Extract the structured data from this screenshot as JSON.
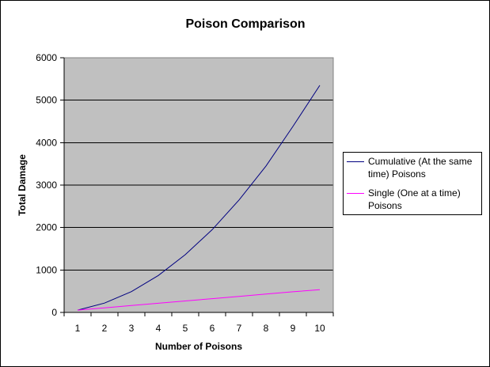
{
  "chart_data": {
    "type": "line",
    "title": "Poison Comparison",
    "xlabel": "Number of Poisons",
    "ylabel": "Total Damage",
    "x": [
      1,
      2,
      3,
      4,
      5,
      6,
      7,
      8,
      9,
      10
    ],
    "x_tick_labels": [
      "1",
      "2",
      "3",
      "4",
      "5",
      "6",
      "7",
      "8",
      "9",
      "10"
    ],
    "ylim": [
      0,
      6000
    ],
    "y_ticks": [
      0,
      1000,
      2000,
      3000,
      4000,
      5000,
      6000
    ],
    "y_tick_labels": [
      "0",
      "1000",
      "2000",
      "3000",
      "4000",
      "5000",
      "6000"
    ],
    "grid": true,
    "legend_position": "right",
    "plot_background": "#c0c0c0",
    "series": [
      {
        "name": "Cumulative (At the same time) Poisons",
        "color": "#000080",
        "values": [
          54,
          220,
          490,
          870,
          1360,
          1950,
          2650,
          3450,
          4380,
          5350
        ]
      },
      {
        "name": "Single (One at a time) Poisons",
        "color": "#ff00ff",
        "values": [
          54,
          108,
          162,
          216,
          270,
          324,
          378,
          432,
          486,
          535
        ]
      }
    ]
  }
}
